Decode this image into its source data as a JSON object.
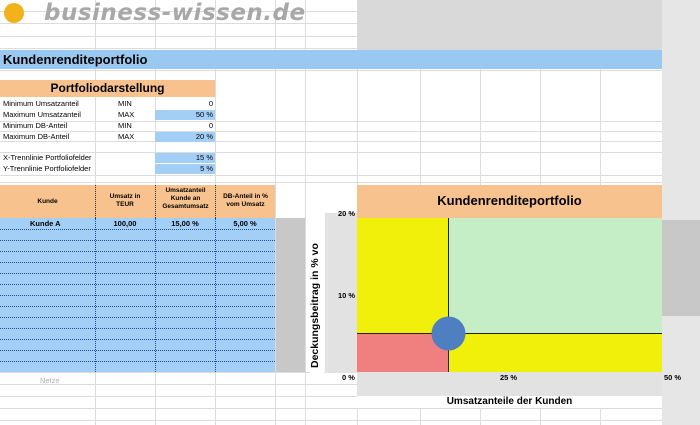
{
  "logo": {
    "text": "business-wissen.de",
    "dot_color": "#f2b21c"
  },
  "title": "Kundenrenditeportfolio",
  "portfolio_panel": {
    "heading": "Portfoliodarstellung",
    "rows": [
      {
        "label": "Minimum Umsatzanteil",
        "key": "MIN",
        "value": "0"
      },
      {
        "label": "Maximum Umsatzanteil",
        "key": "MAX",
        "value": "50 %"
      },
      {
        "label": "Minimum DB-Anteil",
        "key": "MIN",
        "value": "0"
      },
      {
        "label": "Maximum DB-Anteil",
        "key": "MAX",
        "value": "20 %"
      }
    ],
    "x_divider": {
      "label": "X-Trennlinie Portfoliofelder",
      "value": "15 %"
    },
    "y_divider": {
      "label": "Y-Trennlinie Portfoliofelder",
      "value": "5 %"
    }
  },
  "table": {
    "headers": [
      "Kunde",
      "Umsatz in TEUR",
      "Umsatzanteil Kunde an Gesamtumsatz",
      "DB-Anteil in % vom Umsatz"
    ],
    "rows": [
      {
        "kunde": "Kunde A",
        "umsatz": "100,00",
        "anteil": "15,00 %",
        "db": "5,00 %"
      }
    ],
    "footer": "Netze"
  },
  "chart_data": {
    "type": "bubble",
    "title": "Kundenrenditeportfolio",
    "xlabel": "Umsatzanteile der Kunden",
    "ylabel": "Deckungsbeitrag in % vo",
    "x_ticks": [
      "0 %",
      "25 %",
      "50 %"
    ],
    "y_ticks": [
      "20 %",
      "10 %",
      "0 %"
    ],
    "xlim": [
      0,
      50
    ],
    "ylim": [
      0,
      20
    ],
    "dividers": {
      "x": 15,
      "y": 5
    },
    "quadrant_colors": {
      "top_left": "#f0f00a",
      "top_right": "#c5eec6",
      "bottom_left": "#f08080",
      "bottom_right": "#f0f00a"
    },
    "points": [
      {
        "label": "Kunde A",
        "x": 15,
        "y": 5,
        "color": "#4f7ec1"
      }
    ]
  }
}
